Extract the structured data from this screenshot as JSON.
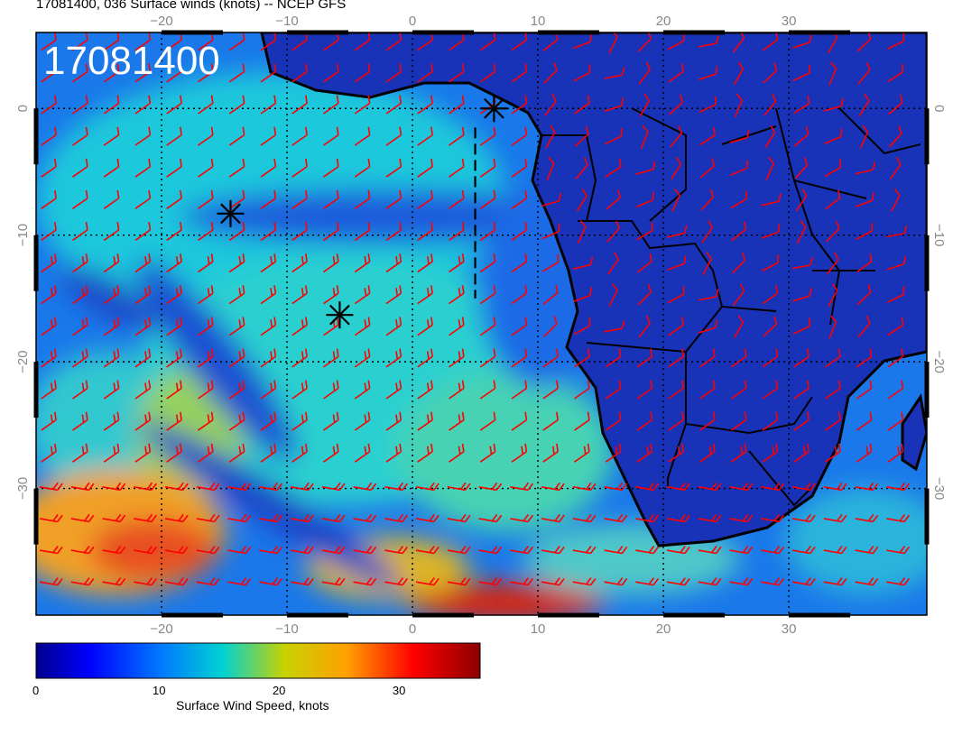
{
  "header": {
    "title": "17081400, 036 Surface winds (knots) -- NCEP GFS",
    "stamp": "17081400"
  },
  "map": {
    "lon_range": [
      -30,
      41
    ],
    "lat_range": [
      -40,
      6
    ],
    "lon_grid": [
      -20,
      -10,
      0,
      10,
      20,
      30
    ],
    "lat_grid": [
      0,
      -10,
      -20,
      -30
    ],
    "lon_tick_labels": [
      "−20",
      "−10",
      "0",
      "10",
      "20",
      "30"
    ],
    "lat_tick_labels": [
      "0",
      "−10",
      "−20",
      "−30"
    ],
    "markers": [
      {
        "name": "storm-center",
        "lon": 6.5,
        "lat": 0
      },
      {
        "name": "storm-center",
        "lon": -14.5,
        "lat": -8.3
      },
      {
        "name": "storm-center",
        "lon": -5.8,
        "lat": -16.3
      }
    ],
    "track_line": {
      "lon": 5,
      "lat_from": -1.5,
      "lat_to": -15
    }
  },
  "colorbar": {
    "ticks": [
      "0",
      "10",
      "20",
      "30"
    ],
    "tick_values": [
      0,
      10,
      20,
      30
    ],
    "range": [
      0,
      37
    ],
    "label": "Surface Wind Speed, knots",
    "colors": [
      "#00008c",
      "#0000ff",
      "#0078ff",
      "#00d2d2",
      "#c8d200",
      "#ffa000",
      "#ff0000",
      "#8c0000"
    ]
  },
  "colors": {
    "land": "#1428b4",
    "land_border": "#000000",
    "barbs": "#ff0000",
    "calm": "#1e46d2",
    "jet": "#d21e00"
  }
}
